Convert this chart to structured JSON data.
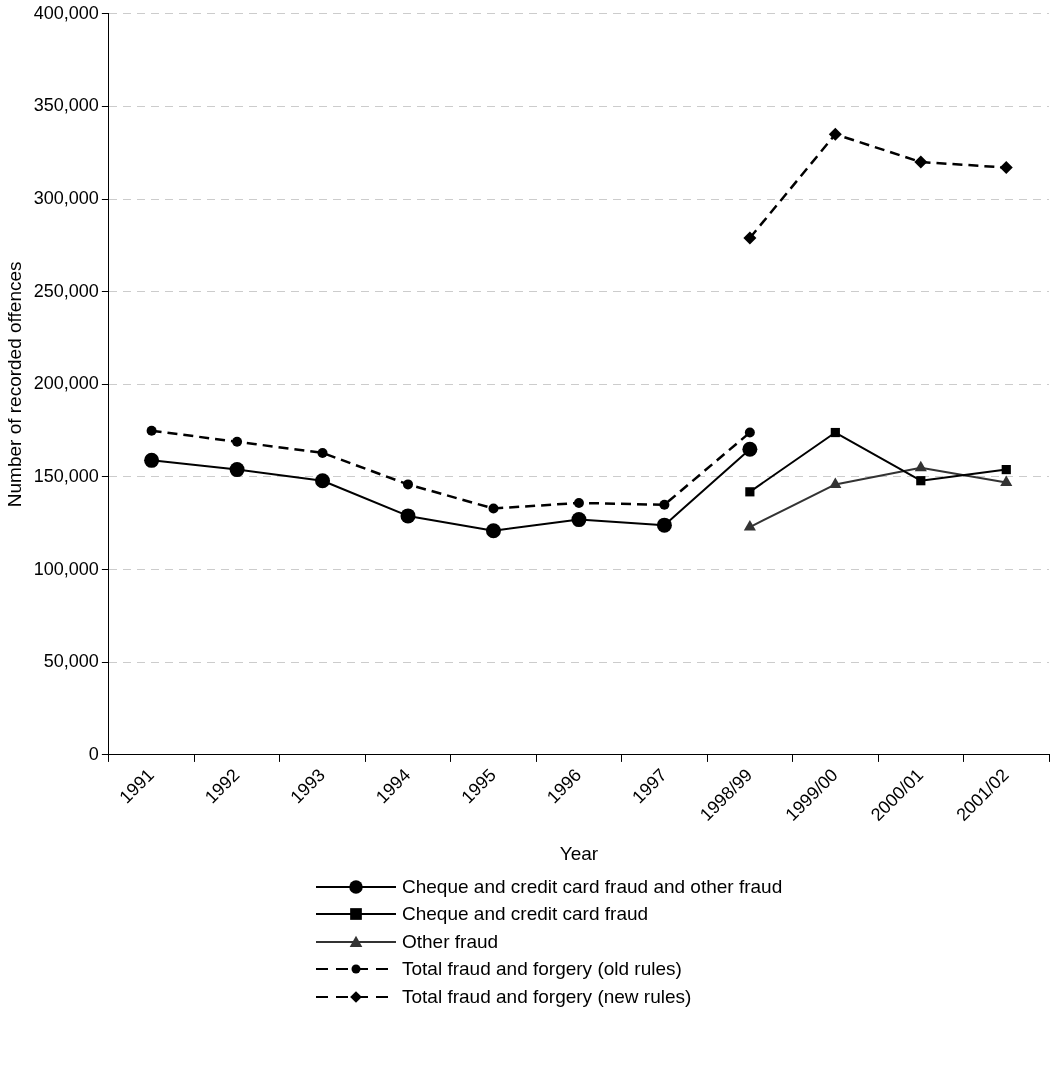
{
  "chart_data": {
    "type": "line",
    "xlabel": "Year",
    "ylabel": "Number of recorded offences",
    "categories": [
      "1991",
      "1992",
      "1993",
      "1994",
      "1995",
      "1996",
      "1997",
      "1998/99",
      "1999/00",
      "2000/01",
      "2001/02"
    ],
    "series": [
      {
        "name": "Cheque and credit card fraud and other fraud",
        "color": "#000000",
        "marker": "circle",
        "line_style": "solid",
        "values": [
          159000,
          154000,
          148000,
          129000,
          121000,
          127000,
          124000,
          165000,
          null,
          null,
          null
        ]
      },
      {
        "name": "Cheque and credit card fraud",
        "color": "#000000",
        "marker": "square",
        "line_style": "solid",
        "values": [
          null,
          null,
          null,
          null,
          null,
          null,
          null,
          142000,
          174000,
          148000,
          154000
        ]
      },
      {
        "name": "Other fraud",
        "color": "#333333",
        "marker": "triangle",
        "line_style": "solid",
        "values": [
          null,
          null,
          null,
          null,
          null,
          null,
          null,
          123000,
          146000,
          155000,
          147000
        ]
      },
      {
        "name": "Total fraud and forgery (old rules)",
        "color": "#000000",
        "marker": "circle",
        "line_style": "dashed",
        "values": [
          175000,
          169000,
          163000,
          146000,
          133000,
          136000,
          135000,
          174000,
          null,
          null,
          null
        ]
      },
      {
        "name": "Total fraud and forgery (new rules)",
        "color": "#000000",
        "marker": "diamond",
        "line_style": "dashed",
        "values": [
          null,
          null,
          null,
          null,
          null,
          null,
          null,
          279000,
          335000,
          320000,
          317000
        ]
      }
    ],
    "ylim": [
      0,
      400000
    ],
    "yticks": [
      0,
      {
        "value": 50000,
        "label": "50,000"
      },
      {
        "value": 100000,
        "label": "100,000"
      },
      {
        "value": 150000,
        "label": "150,000"
      },
      {
        "value": 200000,
        "label": "200,000"
      },
      {
        "value": 250000,
        "label": "250,000"
      },
      {
        "value": 300000,
        "label": "300,000"
      },
      {
        "value": 350000,
        "label": "350,000"
      },
      {
        "value": 400000,
        "label": "400,000"
      }
    ],
    "grid": "y",
    "legend": "bottom"
  }
}
